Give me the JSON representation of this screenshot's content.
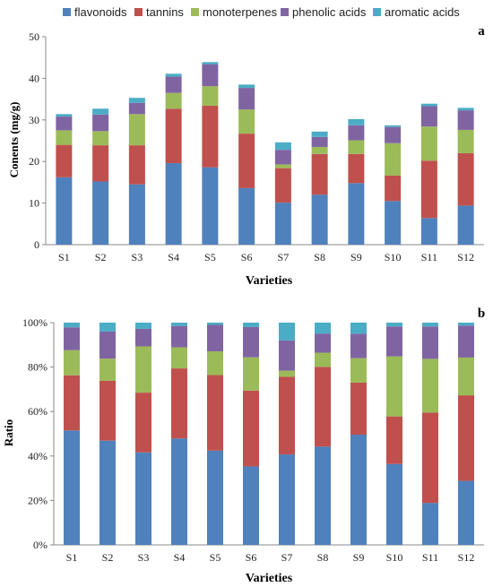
{
  "legend": {
    "items": [
      "flavonoids",
      "tannins",
      "monoterpenes",
      "phenolic acids",
      "aromatic acids"
    ]
  },
  "colors": [
    "#4F81BD",
    "#C0504D",
    "#9BBB59",
    "#8064A2",
    "#4BACC6"
  ],
  "chart_data": [
    {
      "type": "bar",
      "stacked": true,
      "panel_label": "a",
      "xlabel": "Varieties",
      "ylabel": "Conents (mg/g)",
      "ylim": [
        0,
        50
      ],
      "yticks": [
        0,
        10,
        20,
        30,
        40,
        50
      ],
      "categories": [
        "S1",
        "S2",
        "S3",
        "S4",
        "S5",
        "S6",
        "S7",
        "S8",
        "S9",
        "S10",
        "S11",
        "S12"
      ],
      "series": [
        {
          "name": "flavonoids",
          "values": [
            16.2,
            15.2,
            14.5,
            19.6,
            18.6,
            13.6,
            10.1,
            12.0,
            14.8,
            10.5,
            6.4,
            9.4
          ]
        },
        {
          "name": "tannins",
          "values": [
            7.8,
            8.7,
            9.4,
            13.1,
            14.8,
            13.1,
            8.3,
            9.8,
            7.0,
            6.1,
            13.8,
            12.6
          ]
        },
        {
          "name": "monoterpenes",
          "values": [
            3.5,
            3.4,
            7.5,
            3.8,
            4.7,
            5.8,
            0.9,
            1.7,
            3.3,
            7.8,
            8.2,
            5.6
          ]
        },
        {
          "name": "phenolic acids",
          "values": [
            3.3,
            4.0,
            2.7,
            3.9,
            5.3,
            5.2,
            3.5,
            2.4,
            3.6,
            3.9,
            4.9,
            4.7
          ]
        },
        {
          "name": "aromatic acids",
          "values": [
            0.6,
            1.4,
            1.2,
            0.7,
            0.5,
            0.8,
            1.8,
            1.3,
            1.5,
            0.4,
            0.6,
            0.6
          ]
        }
      ]
    },
    {
      "type": "bar",
      "stacked": true,
      "panel_label": "b",
      "xlabel": "Varieties",
      "ylabel": "Ratio",
      "ylim": [
        0,
        100
      ],
      "yticks": [
        "0%",
        "20%",
        "40%",
        "60%",
        "80%",
        "100%"
      ],
      "categories": [
        "S1",
        "S2",
        "S3",
        "S4",
        "S5",
        "S6",
        "S7",
        "S8",
        "S9",
        "S10",
        "S11",
        "S12"
      ],
      "series": [
        {
          "name": "flavonoids",
          "values": [
            51.5,
            46.9,
            41.6,
            47.9,
            42.4,
            35.3,
            40.7,
            44.2,
            49.6,
            36.4,
            18.9,
            28.8
          ]
        },
        {
          "name": "tannins",
          "values": [
            24.8,
            26.9,
            26.9,
            31.5,
            34.0,
            34.1,
            34.9,
            35.9,
            23.4,
            21.4,
            40.6,
            38.5
          ]
        },
        {
          "name": "monoterpenes",
          "values": [
            11.3,
            10.0,
            20.8,
            9.5,
            10.7,
            15.0,
            2.8,
            6.4,
            11.0,
            27.0,
            24.2,
            17.0
          ]
        },
        {
          "name": "phenolic acids",
          "values": [
            10.3,
            12.2,
            7.9,
            9.6,
            11.9,
            13.6,
            13.6,
            8.6,
            11.0,
            13.5,
            14.6,
            14.4
          ]
        },
        {
          "name": "aromatic acids",
          "values": [
            2.1,
            4.0,
            2.8,
            1.5,
            1.0,
            2.0,
            8.0,
            4.9,
            5.0,
            1.7,
            1.7,
            1.3
          ]
        }
      ]
    }
  ]
}
